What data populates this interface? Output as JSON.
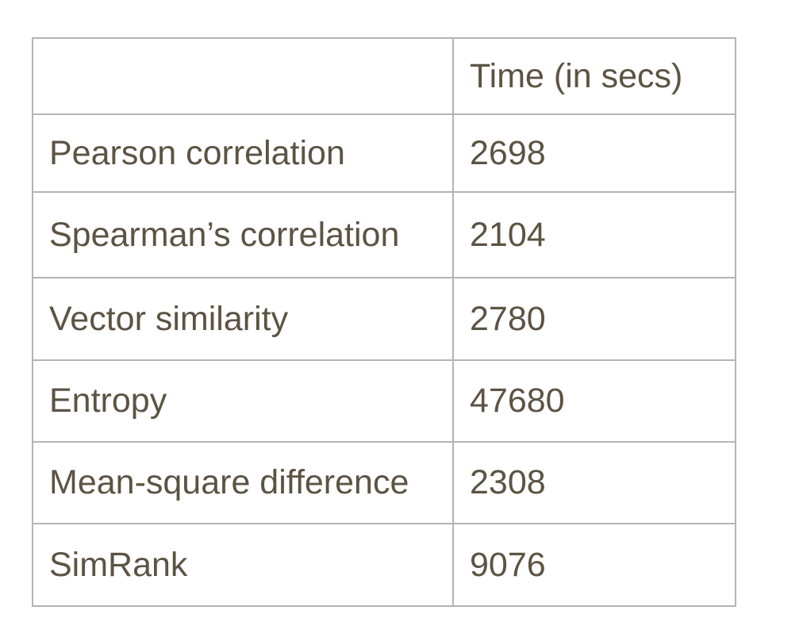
{
  "table": {
    "header": {
      "method": "",
      "time": "Time (in secs)"
    },
    "rows": [
      {
        "method": "Pearson correlation",
        "time": "2698"
      },
      {
        "method": "Spearman’s correlation",
        "time": "2104"
      },
      {
        "method": "Vector similarity",
        "time": "2780"
      },
      {
        "method": "Entropy",
        "time": "47680"
      },
      {
        "method": "Mean-square difference",
        "time": "2308"
      },
      {
        "method": "SimRank",
        "time": "9076"
      }
    ]
  },
  "colors": {
    "text": "#5c5343",
    "border": "#b4b4b4",
    "background": "#ffffff"
  }
}
